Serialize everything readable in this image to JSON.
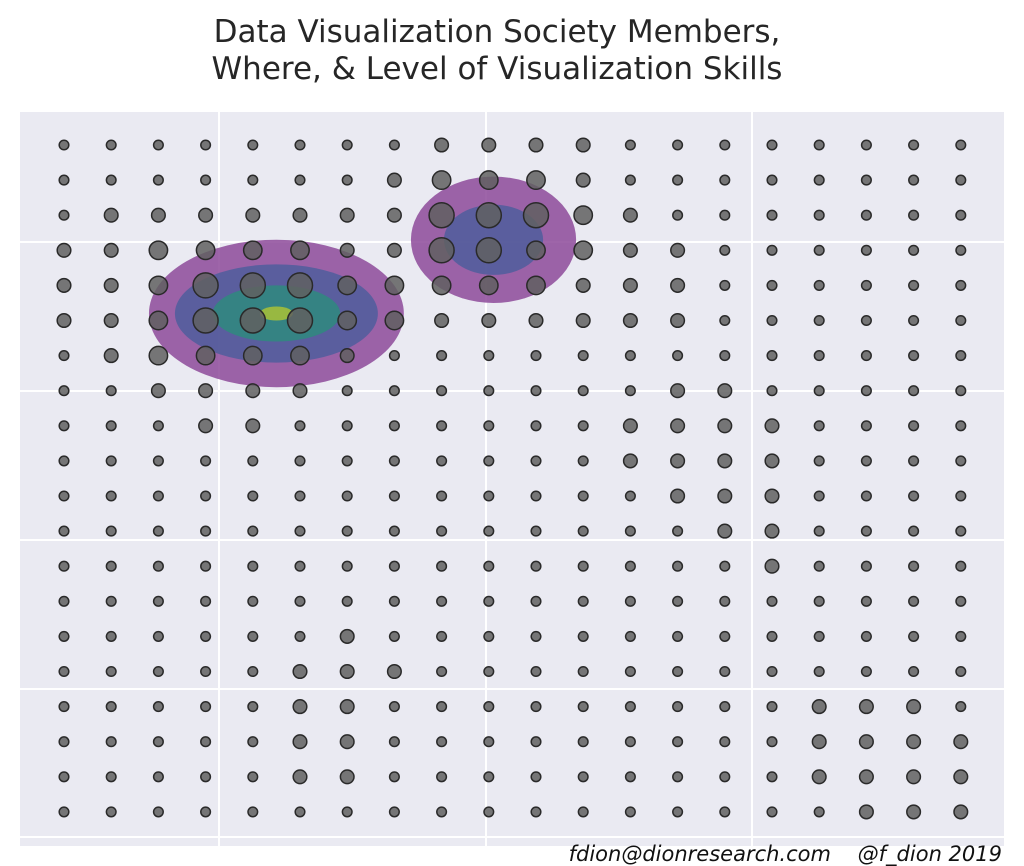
{
  "title_line1": "Data Visualization Society Members,",
  "title_line2": "Where, & Level of Visualization Skills",
  "credit": "fdion@dionresearch.com    @f_dion 2019",
  "colors": {
    "background": "#eaeaf2",
    "grid": "#ffffff",
    "dot_fill": "#606060",
    "dot_stroke": "#2a2a2a",
    "density_levels": [
      "#8d4a9a",
      "#4f5e9c",
      "#2f8a7e",
      "#a9c236"
    ]
  },
  "chart_data": {
    "type": "scatter",
    "title": "Data Visualization Society Members, Where, & Level of Visualization Skills",
    "xlabel": "",
    "ylabel": "",
    "grid": true,
    "legend": "none",
    "columns": 20,
    "rows": 20,
    "dot_size_level": [
      [
        1,
        1,
        1,
        1,
        1,
        1,
        1,
        1,
        2,
        2,
        2,
        2,
        1,
        1,
        1,
        1,
        1,
        1,
        1,
        1
      ],
      [
        1,
        1,
        1,
        1,
        1,
        1,
        1,
        2,
        3,
        3,
        3,
        2,
        1,
        1,
        1,
        1,
        1,
        1,
        1,
        1
      ],
      [
        1,
        2,
        2,
        2,
        2,
        2,
        2,
        2,
        4,
        4,
        4,
        3,
        2,
        1,
        1,
        1,
        1,
        1,
        1,
        1
      ],
      [
        2,
        2,
        3,
        3,
        3,
        3,
        2,
        2,
        4,
        4,
        3,
        3,
        2,
        2,
        1,
        1,
        1,
        1,
        1,
        1
      ],
      [
        2,
        2,
        3,
        4,
        4,
        4,
        3,
        3,
        3,
        3,
        3,
        2,
        2,
        2,
        1,
        1,
        1,
        1,
        1,
        1
      ],
      [
        2,
        2,
        3,
        4,
        4,
        4,
        3,
        3,
        2,
        2,
        2,
        2,
        2,
        2,
        1,
        1,
        1,
        1,
        1,
        1
      ],
      [
        1,
        2,
        3,
        3,
        3,
        3,
        2,
        1,
        1,
        1,
        1,
        1,
        1,
        1,
        1,
        1,
        1,
        1,
        1,
        1
      ],
      [
        1,
        1,
        2,
        2,
        2,
        2,
        1,
        1,
        1,
        1,
        1,
        1,
        1,
        2,
        2,
        1,
        1,
        1,
        1,
        1
      ],
      [
        1,
        1,
        1,
        2,
        2,
        1,
        1,
        1,
        1,
        1,
        1,
        1,
        2,
        2,
        2,
        2,
        1,
        1,
        1,
        1
      ],
      [
        1,
        1,
        1,
        1,
        1,
        1,
        1,
        1,
        1,
        1,
        1,
        1,
        2,
        2,
        2,
        2,
        1,
        1,
        1,
        1
      ],
      [
        1,
        1,
        1,
        1,
        1,
        1,
        1,
        1,
        1,
        1,
        1,
        1,
        1,
        2,
        2,
        2,
        1,
        1,
        1,
        1
      ],
      [
        1,
        1,
        1,
        1,
        1,
        1,
        1,
        1,
        1,
        1,
        1,
        1,
        1,
        1,
        2,
        2,
        1,
        1,
        1,
        1
      ],
      [
        1,
        1,
        1,
        1,
        1,
        1,
        1,
        1,
        1,
        1,
        1,
        1,
        1,
        1,
        1,
        2,
        1,
        1,
        1,
        1
      ],
      [
        1,
        1,
        1,
        1,
        1,
        1,
        1,
        1,
        1,
        1,
        1,
        1,
        1,
        1,
        1,
        1,
        1,
        1,
        1,
        1
      ],
      [
        1,
        1,
        1,
        1,
        1,
        1,
        2,
        1,
        1,
        1,
        1,
        1,
        1,
        1,
        1,
        1,
        1,
        1,
        1,
        1
      ],
      [
        1,
        1,
        1,
        1,
        1,
        2,
        2,
        2,
        1,
        1,
        1,
        1,
        1,
        1,
        1,
        1,
        1,
        1,
        1,
        1
      ],
      [
        1,
        1,
        1,
        1,
        1,
        2,
        2,
        1,
        1,
        1,
        1,
        1,
        1,
        1,
        1,
        1,
        2,
        2,
        2,
        1
      ],
      [
        1,
        1,
        1,
        1,
        1,
        2,
        2,
        1,
        1,
        1,
        1,
        1,
        1,
        1,
        1,
        1,
        2,
        2,
        2,
        2
      ],
      [
        1,
        1,
        1,
        1,
        1,
        2,
        2,
        1,
        1,
        1,
        1,
        1,
        1,
        1,
        1,
        1,
        2,
        2,
        2,
        2
      ],
      [
        1,
        1,
        1,
        1,
        1,
        1,
        1,
        1,
        1,
        1,
        1,
        1,
        1,
        1,
        1,
        1,
        1,
        2,
        2,
        2
      ]
    ],
    "density_regions": [
      {
        "cx": 4.5,
        "cy": 4.8,
        "levels": [
          [
            5.4,
            4.2
          ],
          [
            4.3,
            2.8
          ],
          [
            2.7,
            1.6
          ],
          [
            0.7,
            0.4
          ]
        ]
      },
      {
        "cx": 9.1,
        "cy": 2.7,
        "levels": [
          [
            3.5,
            3.6
          ],
          [
            2.1,
            2.0
          ]
        ]
      }
    ]
  }
}
